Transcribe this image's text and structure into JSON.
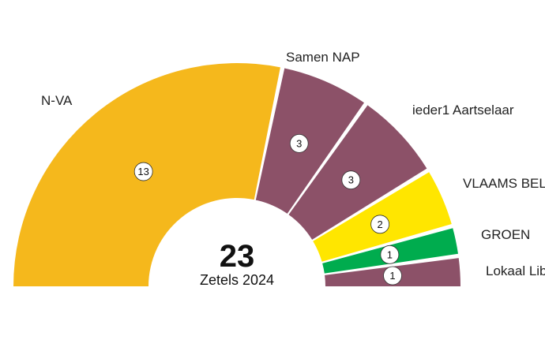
{
  "chart_data": {
    "type": "pie",
    "subtype": "half-donut seat chart",
    "total": "23",
    "caption": "Zetels 2024",
    "series": [
      {
        "name": "N-VA",
        "seats": 13,
        "label": "13",
        "color": "#f5b81c"
      },
      {
        "name": "Samen NAP",
        "seats": 3,
        "label": "3",
        "color": "#8c5168"
      },
      {
        "name": "ieder1 Aartselaar",
        "seats": 3,
        "label": "3",
        "color": "#8c5168"
      },
      {
        "name": "VLAAMS BELANG",
        "seats": 2,
        "label": "2",
        "color": "#ffe600"
      },
      {
        "name": "GROEN",
        "seats": 1,
        "label": "1",
        "color": "#00ac4e"
      },
      {
        "name": "Lokaal Liberaal",
        "seats": 1,
        "label": "1",
        "color": "#8c5168"
      }
    ]
  }
}
